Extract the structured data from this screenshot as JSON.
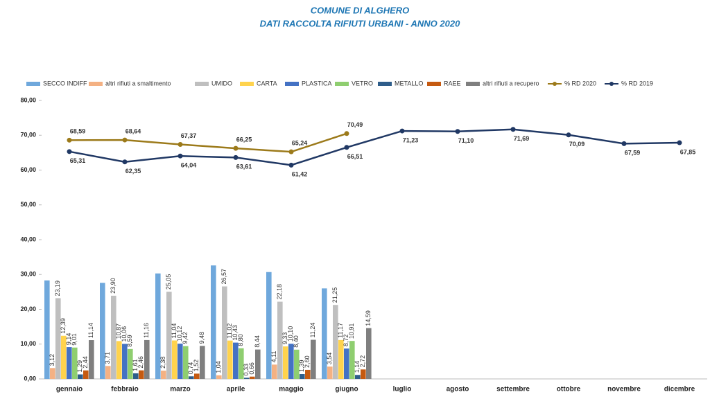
{
  "chart_data": {
    "type": "bar",
    "title": "COMUNE DI ALGHERO",
    "subtitle": "DATI RACCOLTA RIFIUTI URBANI -  ANNO 2020",
    "categories": [
      "gennaio",
      "febbraio",
      "marzo",
      "aprile",
      "maggio",
      "giugno",
      "luglio",
      "agosto",
      "settembre",
      "ottobre",
      "novembre",
      "dicembre"
    ],
    "ylim": [
      0,
      80
    ],
    "yticks": [
      {
        "value": 0,
        "label": "0,00"
      },
      {
        "value": 10,
        "label": "10,00"
      },
      {
        "value": 20,
        "label": "20,00"
      },
      {
        "value": 30,
        "label": "30,00"
      },
      {
        "value": 40,
        "label": "40,00"
      },
      {
        "value": 50,
        "label": "50,00"
      },
      {
        "value": 60,
        "label": "60,00"
      },
      {
        "value": 70,
        "label": "70,00"
      },
      {
        "value": 80,
        "label": "80,00"
      }
    ],
    "grid": false,
    "legend": "top",
    "series": [
      {
        "name": "SECCO INDIFF",
        "color": "#6fa8dc",
        "values": [
          28.3,
          27.6,
          30.3,
          32.6,
          30.7,
          26.0,
          null,
          null,
          null,
          null,
          null,
          null
        ]
      },
      {
        "name": "altri rifiuti a smaltimento",
        "color": "#f4b183",
        "values": [
          3.12,
          3.71,
          2.38,
          1.04,
          4.11,
          3.54,
          null,
          null,
          null,
          null,
          null,
          null
        ],
        "value_labels": [
          "3,12",
          "3,71",
          "2,38",
          "1,04",
          "4,11",
          "3,54",
          null,
          null,
          null,
          null,
          null,
          null
        ]
      },
      {
        "name": "UMIDO",
        "color": "#bfbfbf",
        "values": [
          23.19,
          23.9,
          25.05,
          26.57,
          22.18,
          21.25,
          null,
          null,
          null,
          null,
          null,
          null
        ],
        "value_labels": [
          "23,19",
          "23,90",
          "25,05",
          "26,57",
          "22,18",
          "21,25",
          null,
          null,
          null,
          null,
          null,
          null
        ]
      },
      {
        "name": "CARTA",
        "color": "#ffd34d",
        "values": [
          12.39,
          10.87,
          11.04,
          11.02,
          9.33,
          11.17,
          null,
          null,
          null,
          null,
          null,
          null
        ],
        "value_labels": [
          "12,39",
          "10,87",
          "11,04",
          "11,02",
          "9,33",
          "11,17",
          null,
          null,
          null,
          null,
          null,
          null
        ]
      },
      {
        "name": "PLASTICA",
        "color": "#4472c4",
        "values": [
          9.14,
          10.06,
          10.12,
          10.43,
          10.1,
          8.72,
          null,
          null,
          null,
          null,
          null,
          null
        ],
        "value_labels": [
          "9,14",
          "10,06",
          "10,12",
          "10,43",
          "10,10",
          "8,72",
          null,
          null,
          null,
          null,
          null,
          null
        ]
      },
      {
        "name": "VETRO",
        "color": "#8fce70",
        "values": [
          9.01,
          8.59,
          9.42,
          8.8,
          8.4,
          10.91,
          null,
          null,
          null,
          null,
          null,
          null
        ],
        "value_labels": [
          "9,01",
          "8,59",
          "9,42",
          "8,80",
          "8,40",
          "10,91",
          null,
          null,
          null,
          null,
          null,
          null
        ]
      },
      {
        "name": "METALLO",
        "color": "#2e5d8a",
        "values": [
          1.29,
          1.61,
          0.74,
          0.33,
          1.39,
          1.14,
          null,
          null,
          null,
          null,
          null,
          null
        ],
        "value_labels": [
          "1,29",
          "1,61",
          "0,74",
          "0,33",
          "1,39",
          "1,14",
          null,
          null,
          null,
          null,
          null,
          null
        ]
      },
      {
        "name": "RAEE",
        "color": "#c55a11",
        "values": [
          2.44,
          2.46,
          1.52,
          0.66,
          2.6,
          2.72,
          null,
          null,
          null,
          null,
          null,
          null
        ],
        "value_labels": [
          "2,44",
          "2,46",
          "1,52",
          "0,66",
          "2,60",
          "2,72",
          null,
          null,
          null,
          null,
          null,
          null
        ]
      },
      {
        "name": "altri rifiuti a recupero",
        "color": "#7f7f7f",
        "values": [
          11.14,
          11.16,
          9.48,
          8.44,
          11.24,
          14.59,
          null,
          null,
          null,
          null,
          null,
          null
        ],
        "value_labels": [
          "11,14",
          "11,16",
          "9,48",
          "8,44",
          "11,24",
          "14,59",
          null,
          null,
          null,
          null,
          null,
          null
        ]
      },
      {
        "name": "% RD 2020",
        "type": "line",
        "color": "#9c7a1a",
        "values": [
          68.59,
          68.64,
          67.37,
          66.25,
          65.24,
          70.49,
          null,
          null,
          null,
          null,
          null,
          null
        ],
        "value_labels": [
          "68,59",
          "68,64",
          "67,37",
          "66,25",
          "65,24",
          "70,49",
          null,
          null,
          null,
          null,
          null,
          null
        ]
      },
      {
        "name": "% RD 2019",
        "type": "line",
        "color": "#203864",
        "values": [
          65.31,
          62.35,
          64.04,
          63.61,
          61.42,
          66.51,
          71.23,
          71.1,
          71.69,
          70.09,
          67.59,
          67.85
        ],
        "value_labels": [
          "65,31",
          "62,35",
          "64,04",
          "63,61",
          "61,42",
          "66,51",
          "71,23",
          "71,10",
          "71,69",
          "70,09",
          "67,59",
          "67,85"
        ]
      }
    ]
  }
}
